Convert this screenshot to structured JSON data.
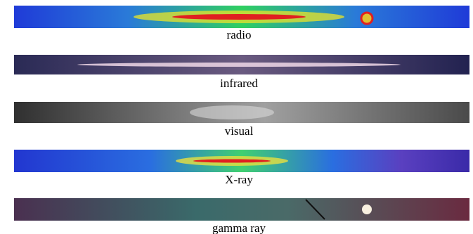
{
  "panels": [
    {
      "label": "radio"
    },
    {
      "label": "infrared"
    },
    {
      "label": "visual"
    },
    {
      "label": "X-ray"
    },
    {
      "label": "gamma ray"
    }
  ]
}
